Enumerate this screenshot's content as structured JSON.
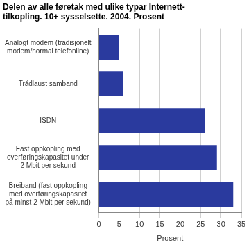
{
  "chart_data": {
    "type": "bar",
    "orientation": "horizontal",
    "title": [
      "Delen av alle føretak med ulike typar Internett-",
      "tilkopling. 10+ sysselsette. 2004. Prosent"
    ],
    "categories": [
      [
        "Analogt modem (tradisjonelt",
        "modem/normal telefonline)"
      ],
      [
        "Trådlaust samband"
      ],
      [
        "ISDN"
      ],
      [
        "Fast oppkopling med",
        "overføringskapasitet under",
        "2 Mbit per sekund"
      ],
      [
        "Breiband (fast oppkopling",
        "med overføringskapasitet",
        "på minst 2 Mbit per sekund)"
      ]
    ],
    "values": [
      5,
      6,
      26,
      29,
      33
    ],
    "color": "#2a3a9e",
    "x_label": "Prosent",
    "xlim": [
      0,
      35
    ],
    "xticks": [
      0,
      5,
      10,
      15,
      20,
      25,
      30,
      35
    ],
    "grid": true
  }
}
